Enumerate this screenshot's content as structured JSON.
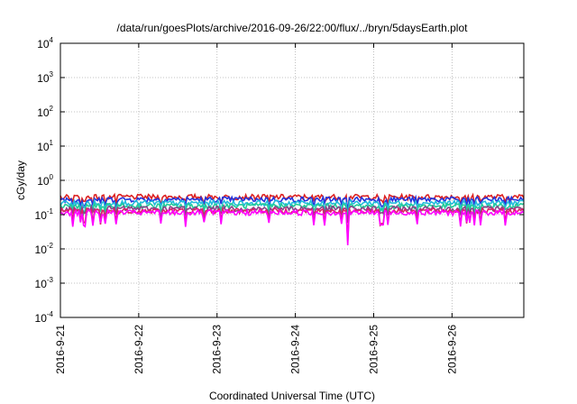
{
  "chart_data": {
    "type": "line",
    "title": "/data/run/goesPlots/archive/2016-09-26/22:00/flux/../bryn/5daysEarth.plot",
    "xlabel": "Coordinated Universal Time (UTC)",
    "ylabel": "cGy/day",
    "yscale": "log",
    "ylim": [
      "1e-4",
      "1e4"
    ],
    "xlim": [
      "2016-09-21 00:00",
      "2016-09-26 22:00"
    ],
    "x_ticks": [
      "2016-9-21",
      "2016-9-22",
      "2016-9-23",
      "2016-9-24",
      "2016-9-25",
      "2016-9-26"
    ],
    "y_ticks": [
      {
        "base": "10",
        "exp": "-4"
      },
      {
        "base": "10",
        "exp": "-3"
      },
      {
        "base": "10",
        "exp": "-2"
      },
      {
        "base": "10",
        "exp": "-1"
      },
      {
        "base": "10",
        "exp": "0"
      },
      {
        "base": "10",
        "exp": "1"
      },
      {
        "base": "10",
        "exp": "2"
      },
      {
        "base": "10",
        "exp": "3"
      },
      {
        "base": "10",
        "exp": "4"
      }
    ],
    "grid": true,
    "series_approx_level": [
      {
        "color": "#dd2222",
        "level": 0.33
      },
      {
        "color": "#2233dd",
        "level": 0.28
      },
      {
        "color": "#22bbdd",
        "level": 0.22
      },
      {
        "color": "#22cc99",
        "level": 0.18
      },
      {
        "color": "#884488",
        "level": 0.15
      },
      {
        "color": "#dd2266",
        "level": 0.13
      },
      {
        "color": "#ff00ff",
        "level": 0.115
      }
    ]
  }
}
